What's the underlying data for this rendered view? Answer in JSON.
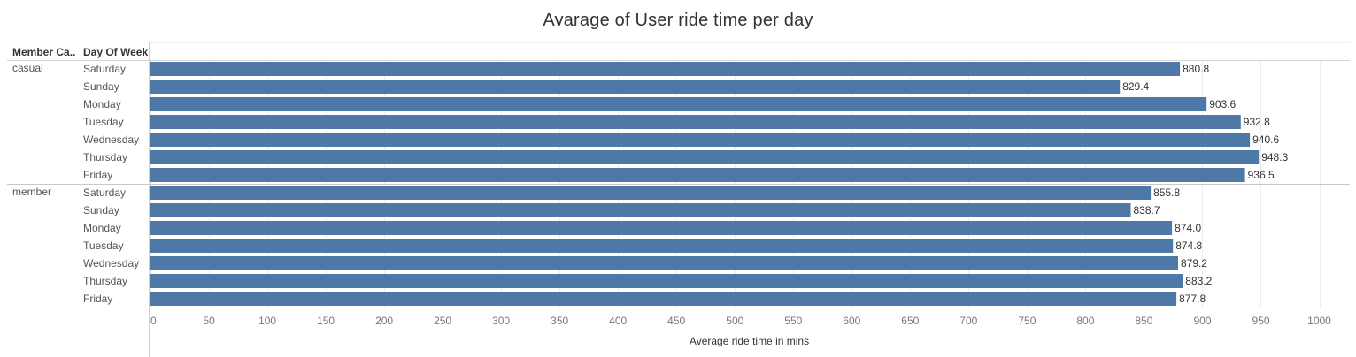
{
  "title": "Avarage of User ride time per day",
  "headers": {
    "member_category": "Member Ca..",
    "day_of_week": "Day Of Week"
  },
  "chart_data": {
    "type": "bar",
    "orientation": "horizontal",
    "title": "Avarage of User ride time per day",
    "xlabel": "Average ride time in mins",
    "ylabel": "",
    "xlim": [
      0,
      1030
    ],
    "xticks": [
      0,
      50,
      100,
      150,
      200,
      250,
      300,
      350,
      400,
      450,
      500,
      550,
      600,
      650,
      700,
      750,
      800,
      850,
      900,
      950,
      1000
    ],
    "grid": true,
    "bar_color": "#4e79a7",
    "groups": [
      {
        "name": "casual",
        "categories": [
          "Saturday",
          "Sunday",
          "Monday",
          "Tuesday",
          "Wednesday",
          "Thursday",
          "Friday"
        ],
        "values": [
          880.8,
          829.4,
          903.6,
          932.8,
          940.6,
          948.3,
          936.5
        ],
        "labels": [
          "880.8",
          "829.4",
          "903.6",
          "932.8",
          "940.6",
          "948.3",
          "936.5"
        ]
      },
      {
        "name": "member",
        "categories": [
          "Saturday",
          "Sunday",
          "Monday",
          "Tuesday",
          "Wednesday",
          "Thursday",
          "Friday"
        ],
        "values": [
          855.8,
          838.7,
          874.0,
          874.8,
          879.2,
          883.2,
          877.8
        ],
        "labels": [
          "855.8",
          "838.7",
          "874.0",
          "874.8",
          "879.2",
          "883.2",
          "877.8"
        ]
      }
    ]
  }
}
